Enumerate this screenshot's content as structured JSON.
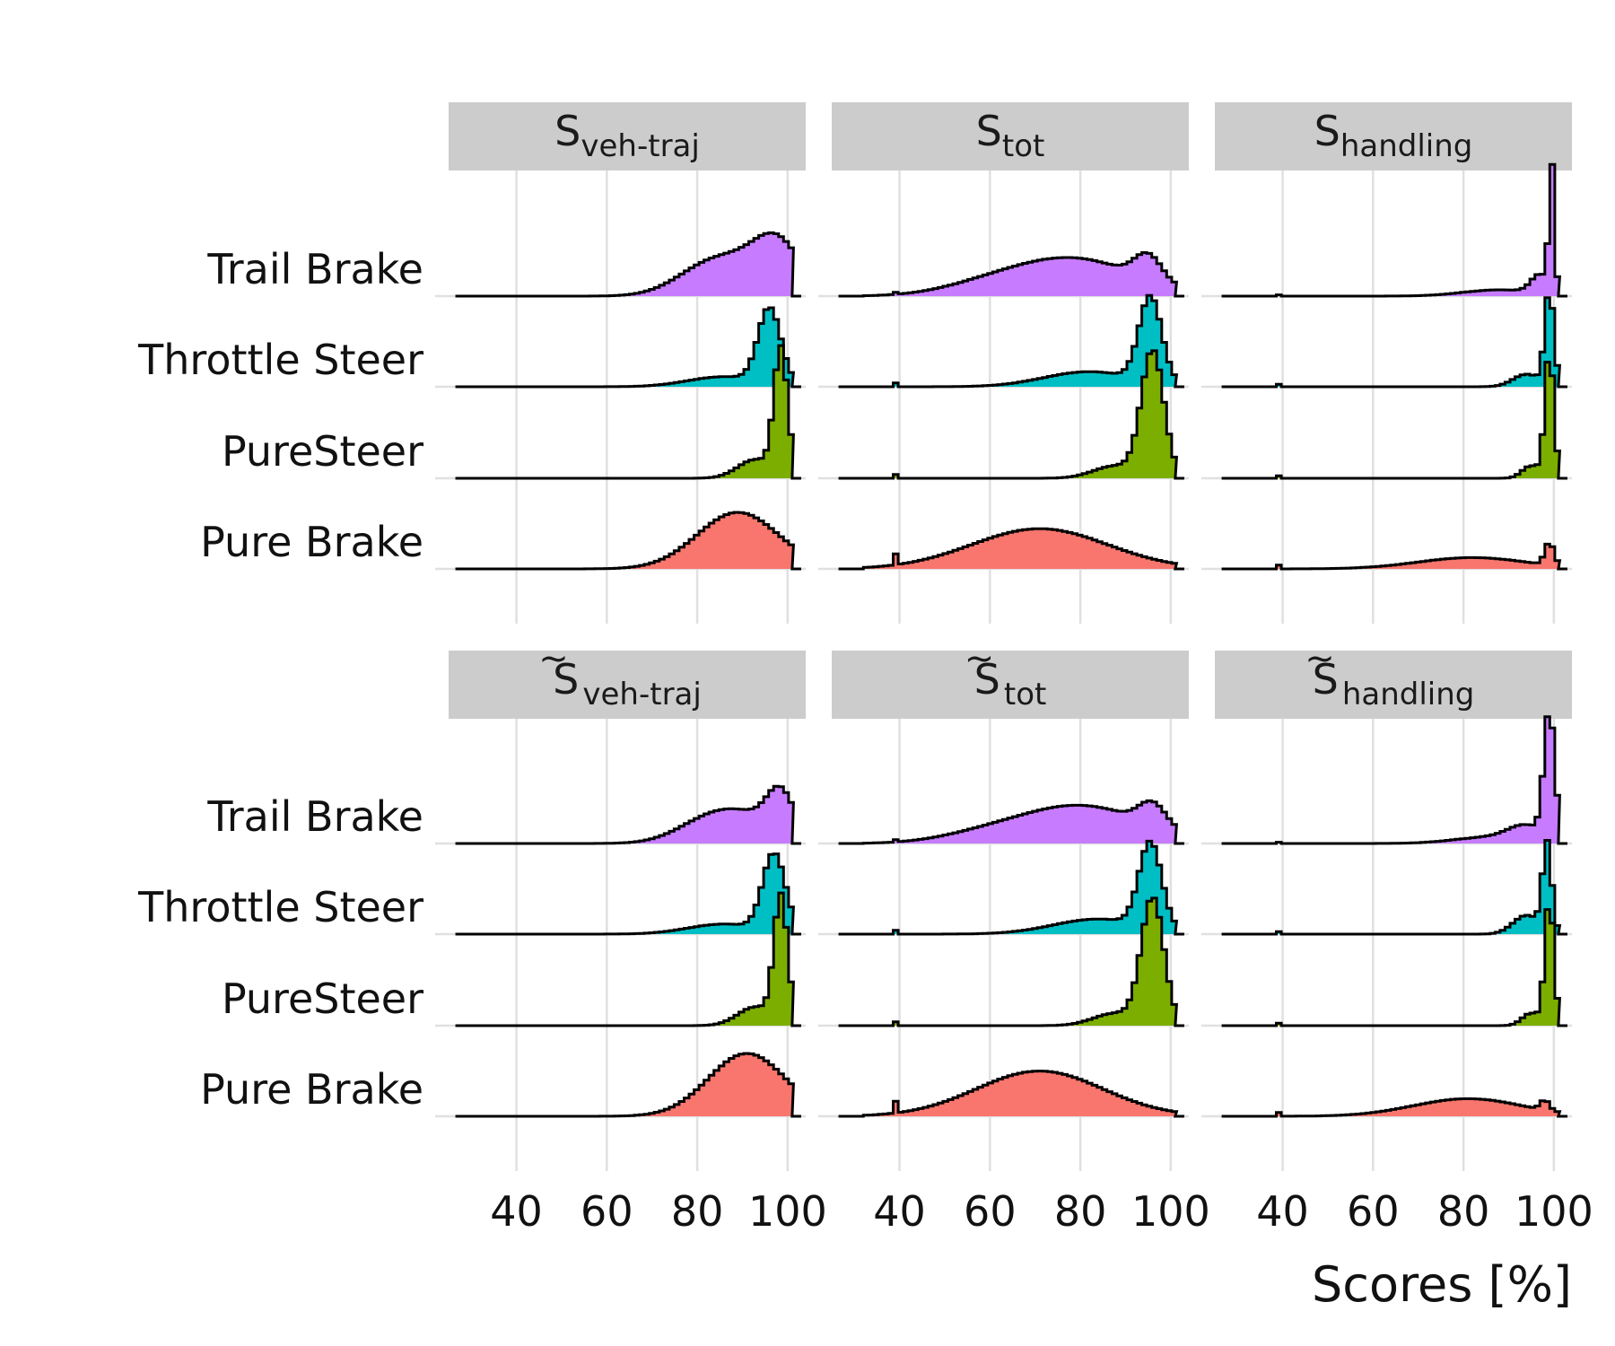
{
  "chart_data": {
    "type": "ridgeline-histogram",
    "xlabel": "Scores [%]",
    "x_ticks": [
      40,
      60,
      80,
      100
    ],
    "xlim": [
      25,
      104
    ],
    "categories": [
      "Trail Brake",
      "Throttle Steer",
      "PureSteer",
      "Pure Brake"
    ],
    "colors": {
      "Trail Brake": "#c77cff",
      "Throttle Steer": "#00bfc4",
      "PureSteer": "#7cae00",
      "Pure Brake": "#f8766d"
    },
    "facet_rows": [
      {
        "panels": [
          {
            "title": {
              "base": "S",
              "sub": "veh-traj",
              "tilde": false
            },
            "series": [
              {
                "name": "Trail Brake",
                "peaks": [
                  [
                    83,
                    7.5,
                    24
                  ],
                  [
                    98,
                    5,
                    33
                  ],
                  [
                    93,
                    7,
                    16
                  ]
                ],
                "spike": null
              },
              {
                "name": "Throttle Steer",
                "peaks": [
                  [
                    96,
                    2.5,
                    60
                  ],
                  [
                    86,
                    8,
                    8
                  ]
                ],
                "spike": null
              },
              {
                "name": "PureSteer",
                "peaks": [
                  [
                    98.5,
                    1.5,
                    100
                  ],
                  [
                    93,
                    4,
                    15
                  ]
                ],
                "spike": null
              },
              {
                "name": "Pure Brake",
                "peaks": [
                  [
                    89,
                    9,
                    45
                  ]
                ],
                "spike": null
              }
            ]
          },
          {
            "title": {
              "base": "S",
              "sub": "tot",
              "tilde": false
            },
            "series": [
              {
                "name": "Trail Brake",
                "peaks": [
                  [
                    78,
                    14,
                    30
                  ],
                  [
                    95,
                    3,
                    20
                  ],
                  [
                    58,
                    10,
                    5
                  ]
                ],
                "spike": [
                  39,
                  3
                ]
              },
              {
                "name": "Throttle Steer",
                "peaks": [
                  [
                    95.5,
                    2.5,
                    68
                  ],
                  [
                    82,
                    10,
                    12
                  ]
                ],
                "spike": [
                  39,
                  3
                ]
              },
              {
                "name": "PureSteer",
                "peaks": [
                  [
                    96,
                    2.5,
                    100
                  ],
                  [
                    88,
                    5,
                    10
                  ]
                ],
                "spike": [
                  39,
                  3
                ]
              },
              {
                "name": "Pure Brake",
                "peaks": [
                  [
                    71,
                    15,
                    32
                  ]
                ],
                "spike": [
                  39,
                  12
                ]
              }
            ]
          },
          {
            "title": {
              "base": "S",
              "sub": "handling",
              "tilde": false
            },
            "series": [
              {
                "name": "Trail Brake",
                "peaks": [
                  [
                    99.5,
                    0.6,
                    100
                  ],
                  [
                    97,
                    2,
                    15
                  ],
                  [
                    88,
                    8,
                    5
                  ]
                ],
                "spike": [
                  39,
                  1
                ]
              },
              {
                "name": "Throttle Steer",
                "peaks": [
                  [
                    99,
                    1,
                    75
                  ],
                  [
                    94,
                    3,
                    10
                  ]
                ],
                "spike": [
                  39,
                  2
                ]
              },
              {
                "name": "PureSteer",
                "peaks": [
                  [
                    99,
                    1,
                    100
                  ],
                  [
                    95,
                    2,
                    10
                  ]
                ],
                "spike": [
                  39,
                  2
                ]
              },
              {
                "name": "Pure Brake",
                "peaks": [
                  [
                    82,
                    12,
                    9
                  ],
                  [
                    99,
                    1,
                    18
                  ]
                ],
                "spike": [
                  39,
                  3
                ]
              }
            ]
          }
        ]
      },
      {
        "panels": [
          {
            "title": {
              "base": "S",
              "sub": "veh-traj",
              "tilde": true
            },
            "series": [
              {
                "name": "Trail Brake",
                "peaks": [
                  [
                    84,
                    7.5,
                    22
                  ],
                  [
                    98.5,
                    3,
                    34
                  ],
                  [
                    93,
                    6,
                    12
                  ]
                ],
                "spike": null
              },
              {
                "name": "Throttle Steer",
                "peaks": [
                  [
                    97,
                    2.5,
                    62
                  ],
                  [
                    86,
                    8,
                    8
                  ]
                ],
                "spike": null
              },
              {
                "name": "PureSteer",
                "peaks": [
                  [
                    98.5,
                    1.5,
                    100
                  ],
                  [
                    93,
                    4,
                    15
                  ]
                ],
                "spike": null
              },
              {
                "name": "Pure Brake",
                "peaks": [
                  [
                    91,
                    8.5,
                    50
                  ]
                ],
                "spike": null
              }
            ]
          },
          {
            "title": {
              "base": "S",
              "sub": "tot",
              "tilde": true
            },
            "series": [
              {
                "name": "Trail Brake",
                "peaks": [
                  [
                    80,
                    14,
                    30
                  ],
                  [
                    96,
                    3,
                    18
                  ],
                  [
                    58,
                    10,
                    5
                  ]
                ],
                "spike": [
                  39,
                  3
                ]
              },
              {
                "name": "Throttle Steer",
                "peaks": [
                  [
                    95.5,
                    2.5,
                    68
                  ],
                  [
                    84,
                    10,
                    12
                  ]
                ],
                "spike": [
                  39,
                  3
                ]
              },
              {
                "name": "PureSteer",
                "peaks": [
                  [
                    96,
                    2.5,
                    100
                  ],
                  [
                    88,
                    5,
                    10
                  ]
                ],
                "spike": [
                  39,
                  3
                ]
              },
              {
                "name": "Pure Brake",
                "peaks": [
                  [
                    71,
                    14,
                    36
                  ]
                ],
                "spike": [
                  39,
                  12
                ]
              }
            ]
          },
          {
            "title": {
              "base": "S",
              "sub": "handling",
              "tilde": true
            },
            "series": [
              {
                "name": "Trail Brake",
                "peaks": [
                  [
                    99,
                    1.2,
                    100
                  ],
                  [
                    94,
                    4,
                    12
                  ],
                  [
                    86,
                    8,
                    5
                  ]
                ],
                "spike": [
                  39,
                  1
                ]
              },
              {
                "name": "Throttle Steer",
                "peaks": [
                  [
                    98.5,
                    1,
                    70
                  ],
                  [
                    94,
                    3,
                    15
                  ]
                ],
                "spike": [
                  39,
                  2
                ]
              },
              {
                "name": "PureSteer",
                "peaks": [
                  [
                    99,
                    1,
                    100
                  ],
                  [
                    95,
                    2,
                    10
                  ]
                ],
                "spike": [
                  39,
                  2
                ]
              },
              {
                "name": "Pure Brake",
                "peaks": [
                  [
                    81,
                    12,
                    14
                  ],
                  [
                    98,
                    1,
                    8
                  ]
                ],
                "spike": [
                  39,
                  3
                ]
              }
            ]
          }
        ]
      }
    ]
  }
}
